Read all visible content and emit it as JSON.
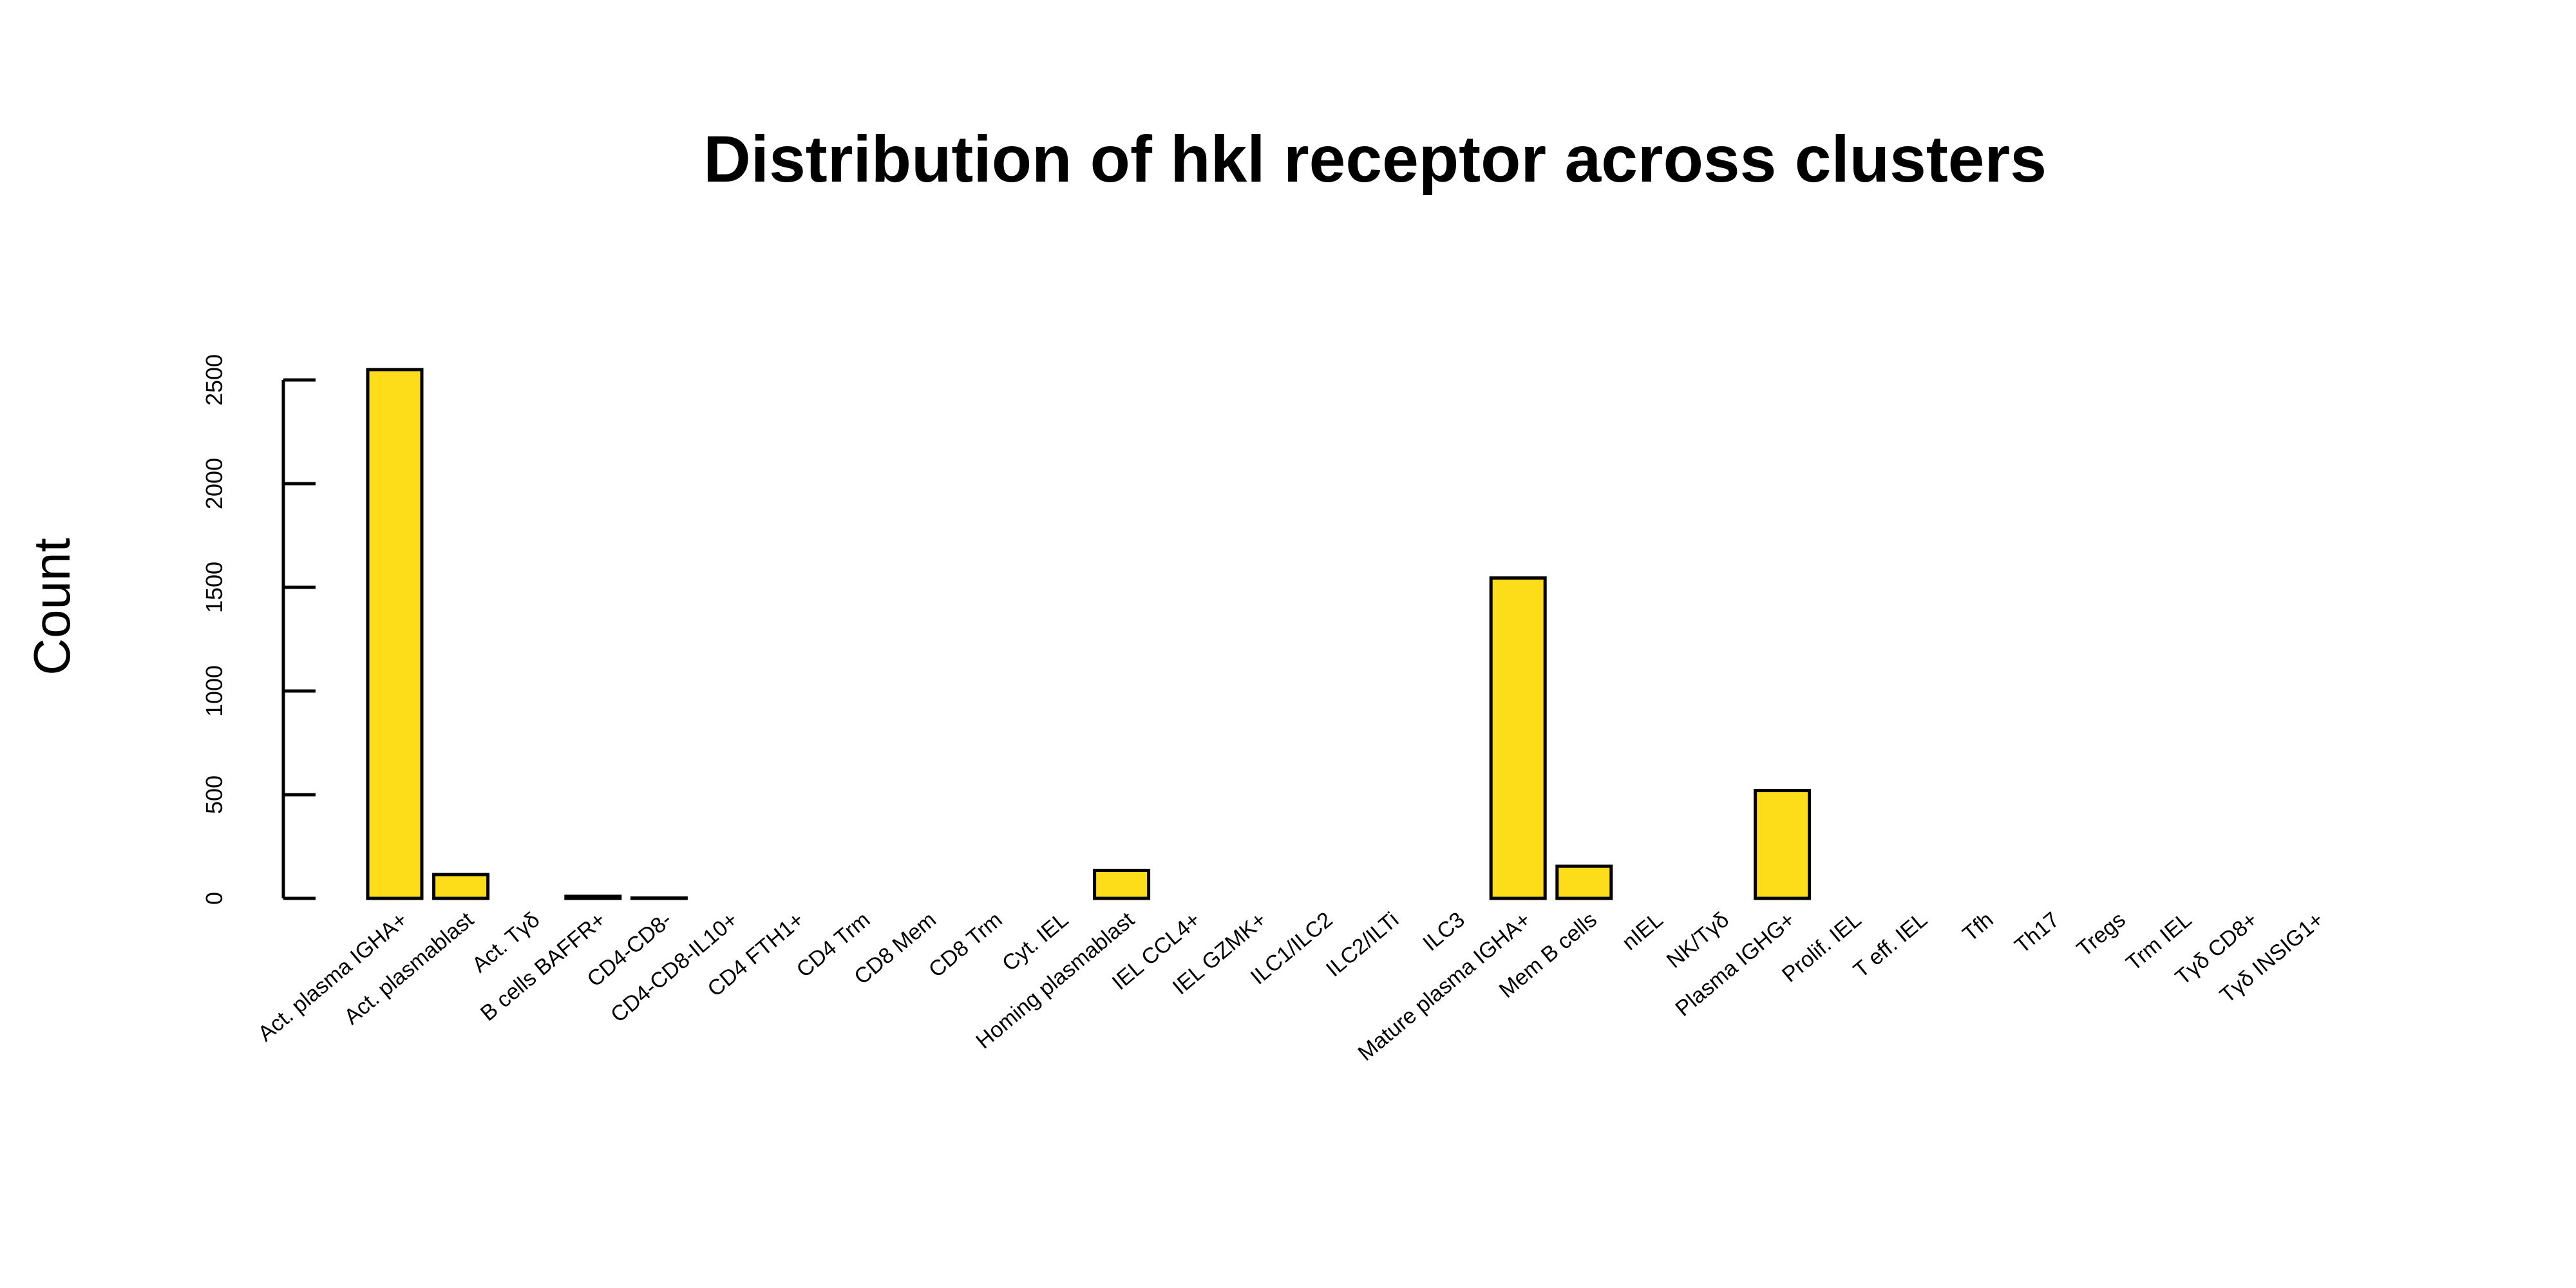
{
  "chart_data": {
    "type": "bar",
    "title": "Distribution of hkl receptor across clusters",
    "xlabel": "",
    "ylabel": "Count",
    "ylim": [
      0,
      2500
    ],
    "yticks": [
      0,
      500,
      1000,
      1500,
      2000,
      2500
    ],
    "bar_color": "#FDDC1A",
    "grid": false,
    "legend": "none",
    "categories": [
      "Act. plasma IGHA+",
      "Act. plasmablast",
      "Act. Tγδ",
      "B cells BAFFR+",
      "CD4-CD8-",
      "CD4-CD8-IL10+",
      "CD4 FTH1+",
      "CD4 Trm",
      "CD8 Mem",
      "CD8 Trm",
      "Cyt. IEL",
      "Homing plasmablast",
      "IEL CCL4+",
      "IEL GZMK+",
      "ILC1/ILC2",
      "ILC2/ILTi",
      "ILC3",
      "Mature plasma IGHA+",
      "Mem B cells",
      "nIEL",
      "NK/Tγδ",
      "Plasma IGHG+",
      "Prolif. IEL",
      "T eff. IEL",
      "Tfh",
      "Th17",
      "Tregs",
      "Trm IEL",
      "Tγδ CD8+",
      "Tγδ INSIG1+"
    ],
    "values": [
      2550,
      115,
      0,
      10,
      2,
      0,
      0,
      0,
      0,
      0,
      0,
      135,
      0,
      0,
      0,
      0,
      0,
      1545,
      155,
      0,
      0,
      520,
      0,
      0,
      0,
      0,
      0,
      0,
      0,
      0
    ]
  }
}
